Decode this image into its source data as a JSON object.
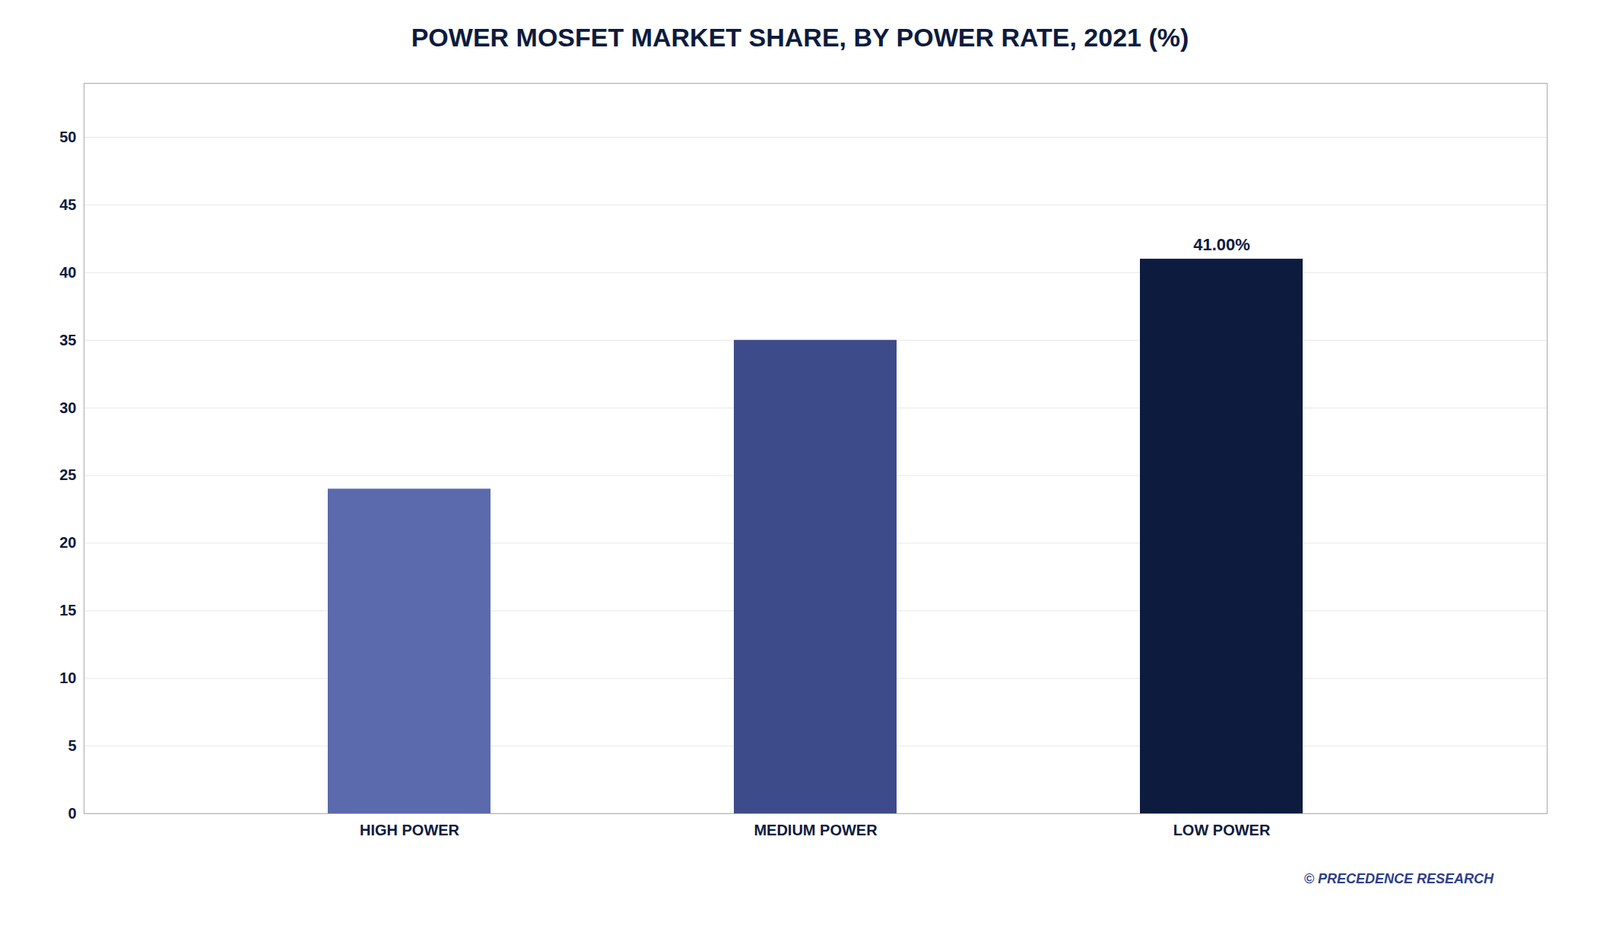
{
  "chart_data": {
    "type": "bar",
    "title": "POWER MOSFET MARKET SHARE, BY POWER RATE, 2021 (%)",
    "categories": [
      "HIGH POWER",
      "MEDIUM POWER",
      "LOW POWER"
    ],
    "values": [
      24.0,
      35.0,
      41.0
    ],
    "colors": [
      "#5b6aad",
      "#3d4b8a",
      "#0d1b3e"
    ],
    "ylim": [
      0,
      54
    ],
    "yticks": [
      0,
      5,
      10,
      15,
      20,
      25,
      30,
      35,
      40,
      45,
      50
    ],
    "grid": true,
    "annotations": [
      {
        "text": "41.00%",
        "x": "LOW POWER",
        "y": 41.0
      }
    ],
    "caption": "© PRECEDENCE RESEARCH"
  }
}
